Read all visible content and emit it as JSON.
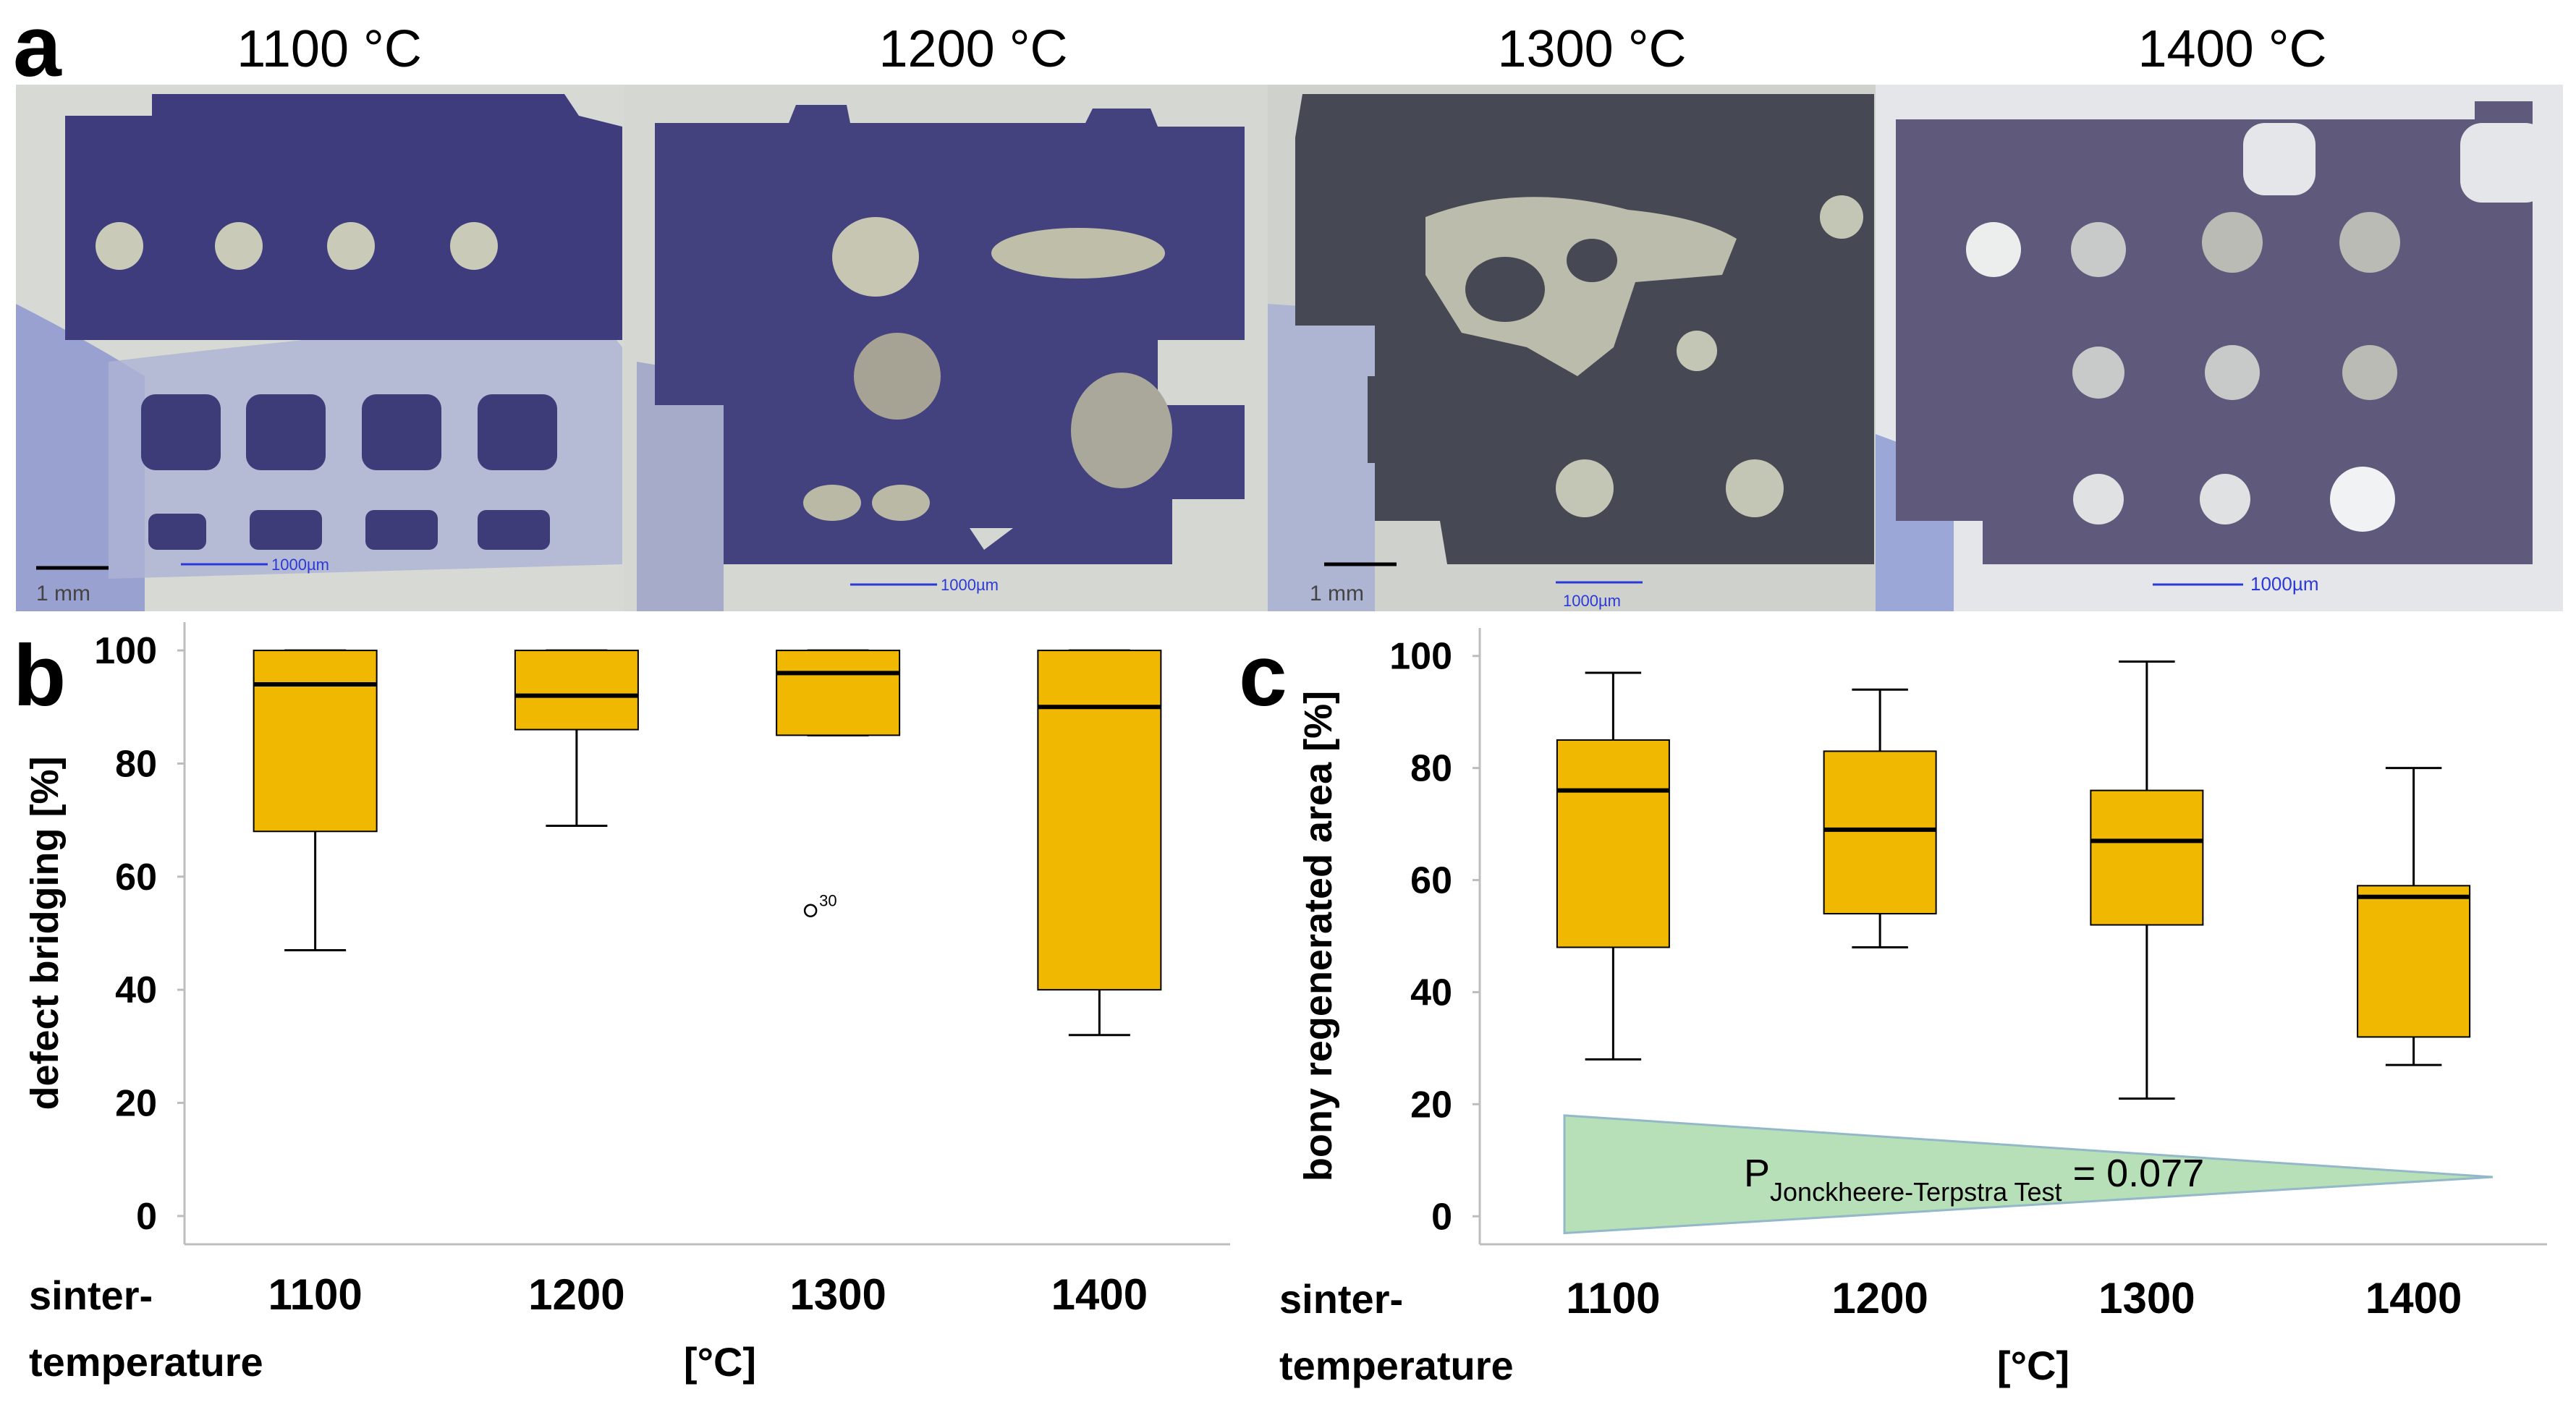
{
  "panel_a": {
    "letter": "a",
    "headers": [
      "1100 °C",
      "1200 °C",
      "1300 °C",
      "1400 °C"
    ],
    "scale_labels": [
      "1 mm",
      "1000µm",
      "1000µm",
      "1 mm",
      "1000µm",
      "1000µm"
    ],
    "colors": {
      "scaffold": "#3b3a79",
      "tissue_stain": "#7b86cf",
      "background": "#d8dad6"
    }
  },
  "chart_data": [
    {
      "type": "box",
      "panel": "b",
      "categories": [
        "1100",
        "1200",
        "1300",
        "1400"
      ],
      "ylabel": "defect bridging [%]",
      "xlabel": "[°C]",
      "xlabel_left_line1": "sinter-",
      "xlabel_left_line2": "temperature",
      "ylim": [
        -5,
        105
      ],
      "yticks": [
        0,
        20,
        40,
        60,
        80,
        100
      ],
      "grid": false,
      "box_color": "#f0b800",
      "boxes": [
        {
          "category": "1100",
          "whisker_low": 47,
          "q1": 68,
          "median": 94,
          "q3": 100,
          "whisker_high": 100
        },
        {
          "category": "1200",
          "whisker_low": 69,
          "q1": 86,
          "median": 92,
          "q3": 100,
          "whisker_high": 100
        },
        {
          "category": "1300",
          "whisker_low": 85,
          "q1": 85,
          "median": 96,
          "q3": 100,
          "whisker_high": 100
        },
        {
          "category": "1400",
          "whisker_low": 32,
          "q1": 40,
          "median": 90,
          "q3": 100,
          "whisker_high": 100
        }
      ],
      "outliers": [
        {
          "category": "1300",
          "value": 54,
          "label": "30"
        }
      ]
    },
    {
      "type": "box",
      "panel": "c",
      "categories": [
        "1100",
        "1200",
        "1300",
        "1400"
      ],
      "ylabel": "bony regenerated area [%]",
      "xlabel": "[°C]",
      "xlabel_left_line1": "sinter-",
      "xlabel_left_line2": "temperature",
      "ylim": [
        -5,
        105
      ],
      "yticks": [
        0,
        20,
        40,
        60,
        80,
        100
      ],
      "grid": false,
      "box_color": "#f0b800",
      "boxes": [
        {
          "category": "1100",
          "whisker_low": 28,
          "q1": 48,
          "median": 76,
          "q3": 85,
          "whisker_high": 97
        },
        {
          "category": "1200",
          "whisker_low": 48,
          "q1": 54,
          "median": 69,
          "q3": 83,
          "whisker_high": 94
        },
        {
          "category": "1300",
          "whisker_low": 21,
          "q1": 52,
          "median": 67,
          "q3": 76,
          "whisker_high": 99
        },
        {
          "category": "1400",
          "whisker_low": 27,
          "q1": 32,
          "median": 57,
          "q3": 59,
          "whisker_high": 80
        }
      ],
      "annotation": {
        "p_main": "P",
        "p_subscript": "Jonckheere-Terpstra Test",
        "p_value": " = 0.077",
        "wedge_color": "#b8e0b8"
      }
    }
  ]
}
